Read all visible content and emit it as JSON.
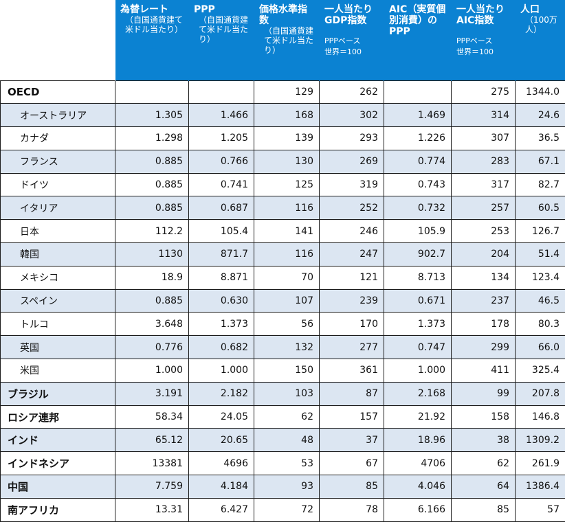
{
  "headers": [
    {
      "main": "為替レート",
      "sub": "（自国通貨建て米ドル当たり）",
      "note": ""
    },
    {
      "main": "PPP",
      "sub": "（自国通貨建て米ドル当たり）",
      "note": ""
    },
    {
      "main": "価格水準指数",
      "sub": "（自国通貨建て米ドル当たり）",
      "note": ""
    },
    {
      "main": "一人当たりGDP指数",
      "sub": "",
      "note": "PPPベース\n世界＝100"
    },
    {
      "main": "AIC（実質個別消費）のPPP",
      "sub": "",
      "note": ""
    },
    {
      "main": "一人当たりAIC指数",
      "sub": "",
      "note": "PPPベース\n世界＝100"
    },
    {
      "main": "人口",
      "sub": "（100万人）",
      "note": ""
    }
  ],
  "rows": [
    {
      "name": "OECD",
      "level": "main",
      "shade": false,
      "values": [
        "",
        "",
        "129",
        "262",
        "",
        "275",
        "1344.0"
      ]
    },
    {
      "name": "オーストラリア",
      "level": "sub",
      "shade": true,
      "values": [
        "1.305",
        "1.466",
        "168",
        "302",
        "1.469",
        "314",
        "24.6"
      ]
    },
    {
      "name": "カナダ",
      "level": "sub",
      "shade": false,
      "values": [
        "1.298",
        "1.205",
        "139",
        "293",
        "1.226",
        "307",
        "36.5"
      ]
    },
    {
      "name": "フランス",
      "level": "sub",
      "shade": true,
      "values": [
        "0.885",
        "0.766",
        "130",
        "269",
        "0.774",
        "283",
        "67.1"
      ]
    },
    {
      "name": "ドイツ",
      "level": "sub",
      "shade": false,
      "values": [
        "0.885",
        "0.741",
        "125",
        "319",
        "0.743",
        "317",
        "82.7"
      ]
    },
    {
      "name": "イタリア",
      "level": "sub",
      "shade": true,
      "values": [
        "0.885",
        "0.687",
        "116",
        "252",
        "0.732",
        "257",
        "60.5"
      ]
    },
    {
      "name": "日本",
      "level": "sub",
      "shade": false,
      "values": [
        "112.2",
        "105.4",
        "141",
        "246",
        "105.9",
        "253",
        "126.7"
      ]
    },
    {
      "name": "韓国",
      "level": "sub",
      "shade": true,
      "values": [
        "1130",
        "871.7",
        "116",
        "247",
        "902.7",
        "204",
        "51.4"
      ]
    },
    {
      "name": "メキシコ",
      "level": "sub",
      "shade": false,
      "values": [
        "18.9",
        "8.871",
        "70",
        "121",
        "8.713",
        "134",
        "123.4"
      ]
    },
    {
      "name": "スペイン",
      "level": "sub",
      "shade": true,
      "values": [
        "0.885",
        "0.630",
        "107",
        "239",
        "0.671",
        "237",
        "46.5"
      ]
    },
    {
      "name": "トルコ",
      "level": "sub",
      "shade": false,
      "values": [
        "3.648",
        "1.373",
        "56",
        "170",
        "1.373",
        "178",
        "80.3"
      ]
    },
    {
      "name": "英国",
      "level": "sub",
      "shade": true,
      "values": [
        "0.776",
        "0.682",
        "132",
        "277",
        "0.747",
        "299",
        "66.0"
      ]
    },
    {
      "name": "米国",
      "level": "sub",
      "shade": false,
      "values": [
        "1.000",
        "1.000",
        "150",
        "361",
        "1.000",
        "411",
        "325.4"
      ]
    },
    {
      "name": "ブラジル",
      "level": "main",
      "shade": true,
      "values": [
        "3.191",
        "2.182",
        "103",
        "87",
        "2.168",
        "99",
        "207.8"
      ]
    },
    {
      "name": "ロシア連邦",
      "level": "main",
      "shade": false,
      "values": [
        "58.34",
        "24.05",
        "62",
        "157",
        "21.92",
        "158",
        "146.8"
      ]
    },
    {
      "name": "インド",
      "level": "main",
      "shade": true,
      "values": [
        "65.12",
        "20.65",
        "48",
        "37",
        "18.96",
        "38",
        "1309.2"
      ]
    },
    {
      "name": "インドネシア",
      "level": "main",
      "shade": false,
      "values": [
        "13381",
        "4696",
        "53",
        "67",
        "4706",
        "62",
        "261.9"
      ]
    },
    {
      "name": "中国",
      "level": "main",
      "shade": true,
      "values": [
        "7.759",
        "4.184",
        "93",
        "85",
        "4.046",
        "64",
        "1386.4"
      ]
    },
    {
      "name": "南アフリカ",
      "level": "main",
      "shade": false,
      "values": [
        "13.31",
        "6.427",
        "72",
        "78",
        "6.166",
        "85",
        "57"
      ]
    }
  ],
  "colors": {
    "header_bg": "#0b82d2",
    "row_shade": "#dce6f2",
    "border": "#1a1a1a"
  }
}
